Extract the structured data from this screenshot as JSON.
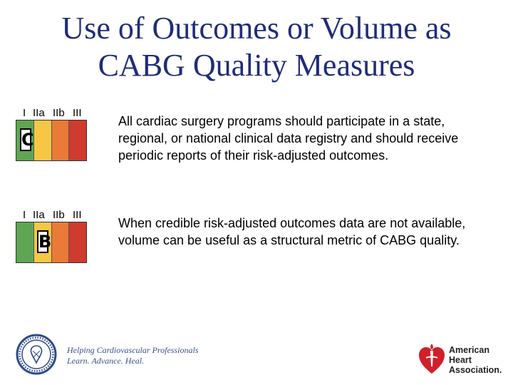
{
  "slide": {
    "title_line1": "Use of Outcomes or Volume as",
    "title_line2": "CABG Quality Measures"
  },
  "recommendations": [
    {
      "class_labels": [
        "I",
        "IIa",
        "IIb",
        "III"
      ],
      "level_of_evidence": "C",
      "text": "All cardiac surgery programs should participate in a state, regional, or national clinical data registry and should receive periodic reports of their risk-adjusted outcomes."
    },
    {
      "class_labels": [
        "I",
        "IIa",
        "IIb",
        "III"
      ],
      "level_of_evidence": "B",
      "text": "When credible risk-adjusted outcomes data are not available, volume can be useful as a structural metric of CABG quality."
    }
  ],
  "class_colors": {
    "I": "#5fa552",
    "IIa": "#f6c744",
    "IIb": "#e97a37",
    "III": "#cf3b2d"
  },
  "footer": {
    "tagline_line1": "Helping Cardiovascular Professionals",
    "tagline_line2": "Learn. Advance. Heal.",
    "aha_line1": "American",
    "aha_line2": "Heart",
    "aha_line3": "Association."
  },
  "icons": {
    "acc_seal": "acc-seal-icon",
    "aha_heart_torch": "aha-heart-torch-icon"
  }
}
